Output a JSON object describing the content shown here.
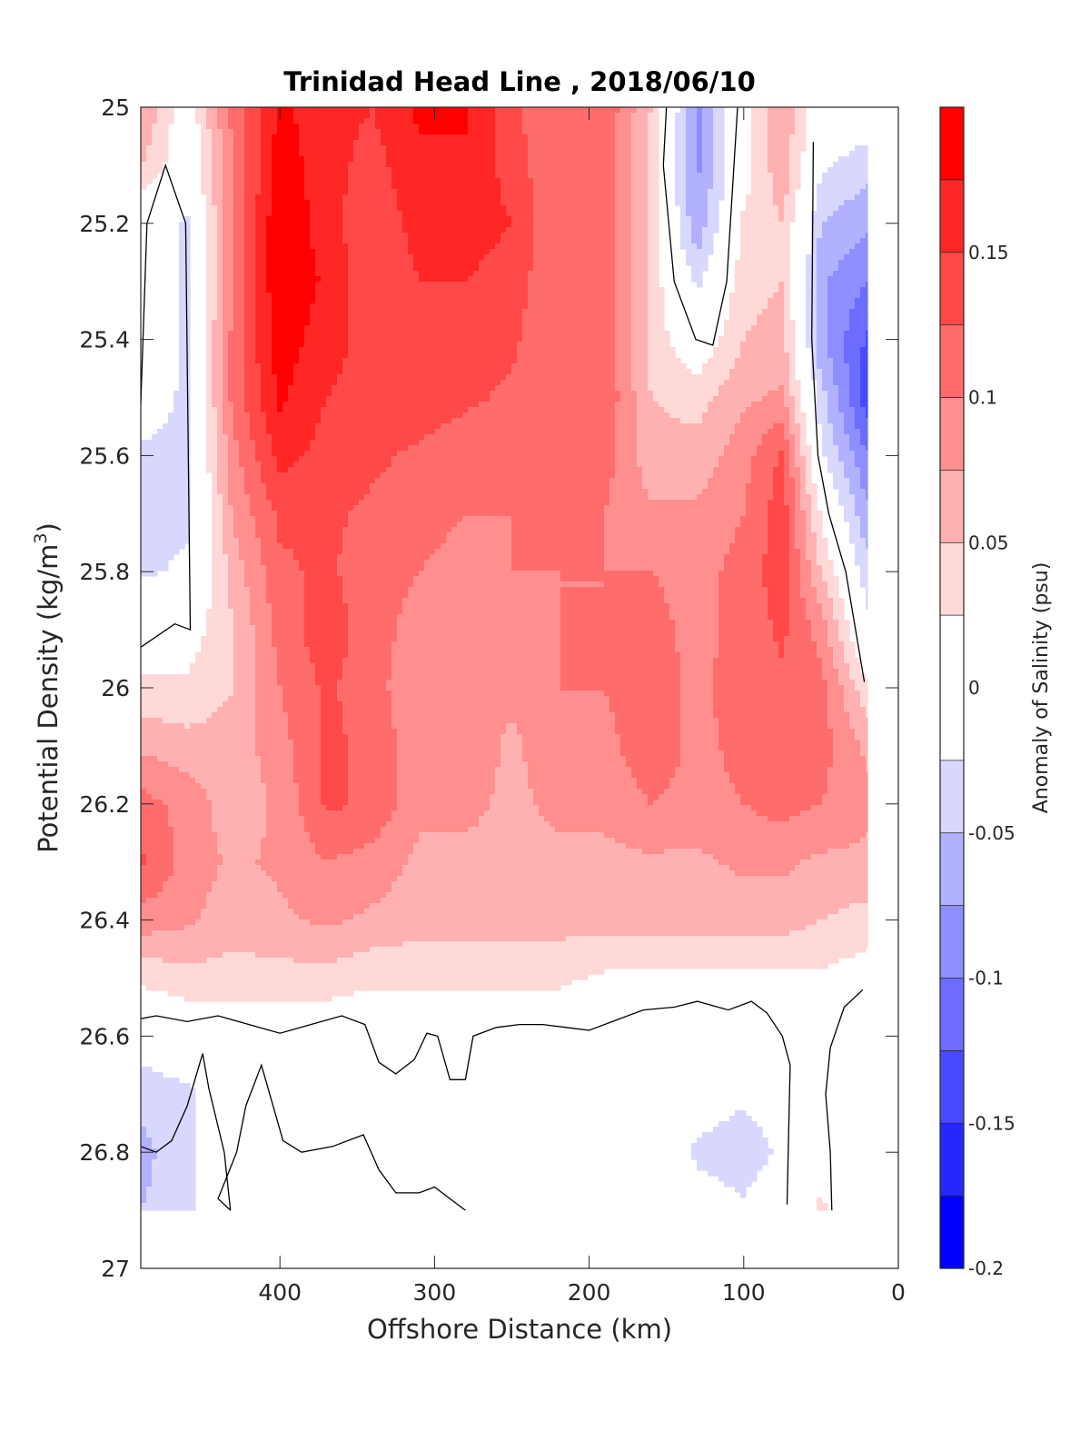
{
  "chart_data": {
    "type": "contour",
    "title": "Trinidad Head Line , 2018/06/10",
    "xlabel": "Offshore Distance (km)",
    "ylabel": "Potential Density (kg/m3)",
    "ylabel_parts": {
      "main": "Potential Density (kg/m",
      "sup": "3",
      "close": ")"
    },
    "colorbar_label": "Anomaly of Salinity (psu)",
    "x_axis": {
      "min": 0,
      "max": 490,
      "reversed": true,
      "ticks": [
        400,
        300,
        200,
        100,
        0
      ],
      "tick_labels": [
        "400",
        "300",
        "200",
        "100",
        "0"
      ]
    },
    "y_axis": {
      "min": 25,
      "max": 27,
      "reversed": true,
      "ticks": [
        25,
        25.2,
        25.4,
        25.6,
        25.8,
        26,
        26.2,
        26.4,
        26.6,
        26.8,
        27
      ],
      "tick_labels": [
        "25",
        "25.2",
        "25.4",
        "25.6",
        "25.8",
        "26",
        "26.2",
        "26.4",
        "26.6",
        "26.8",
        "27"
      ]
    },
    "colorbar": {
      "min": -0.2,
      "max": 0.2,
      "ticks": [
        0.15,
        0.1,
        0.05,
        0,
        -0.05,
        -0.1,
        -0.15,
        -0.2
      ],
      "tick_labels": [
        "0.15",
        "0.1",
        "0.05",
        "0",
        "-0.05",
        "-0.1",
        "-0.15",
        "-0.2"
      ],
      "levels": [
        {
          "from": 0.175,
          "to": 0.2,
          "color": "#ff0000"
        },
        {
          "from": 0.15,
          "to": 0.175,
          "color": "#ff2626"
        },
        {
          "from": 0.125,
          "to": 0.15,
          "color": "#ff4949"
        },
        {
          "from": 0.1,
          "to": 0.125,
          "color": "#ff6c6c"
        },
        {
          "from": 0.075,
          "to": 0.1,
          "color": "#ff8e8e"
        },
        {
          "from": 0.05,
          "to": 0.075,
          "color": "#ffb1b1"
        },
        {
          "from": 0.025,
          "to": 0.05,
          "color": "#ffd8d8"
        },
        {
          "from": -0.025,
          "to": 0.025,
          "color": "#ffffff"
        },
        {
          "from": -0.05,
          "to": -0.025,
          "color": "#d8d8ff"
        },
        {
          "from": -0.075,
          "to": -0.05,
          "color": "#b1b1ff"
        },
        {
          "from": -0.1,
          "to": -0.075,
          "color": "#8e8eff"
        },
        {
          "from": -0.125,
          "to": -0.1,
          "color": "#6c6cff"
        },
        {
          "from": -0.15,
          "to": -0.125,
          "color": "#4949ff"
        },
        {
          "from": -0.175,
          "to": -0.15,
          "color": "#2626ff"
        },
        {
          "from": -0.2,
          "to": -0.175,
          "color": "#0000ff"
        }
      ]
    },
    "data_extent": {
      "x": [
        20,
        490
      ],
      "y": [
        25,
        26.9
      ]
    },
    "x_stations": [
      490,
      460,
      430,
      400,
      370,
      340,
      310,
      280,
      250,
      220,
      190,
      160,
      130,
      100,
      75,
      50,
      20
    ],
    "y_levels": [
      25.0,
      25.1,
      25.2,
      25.3,
      25.4,
      25.5,
      25.6,
      25.7,
      25.8,
      25.9,
      26.0,
      26.1,
      26.2,
      26.3,
      26.4,
      26.5,
      26.6,
      26.7,
      26.8,
      26.9
    ],
    "grid_note": "salinity anomaly (psu); rows follow y_levels, columns follow x_stations",
    "values": [
      [
        0.08,
        0.0,
        0.11,
        0.18,
        0.16,
        0.15,
        0.18,
        0.18,
        0.13,
        0.1,
        0.12,
        0.05,
        -0.08,
        0.01,
        0.07,
        0.0,
        0.0
      ],
      [
        0.05,
        0.0,
        0.1,
        0.19,
        0.16,
        0.14,
        0.17,
        0.17,
        0.14,
        0.1,
        0.12,
        0.04,
        -0.08,
        0.01,
        0.07,
        -0.02,
        -0.04
      ],
      [
        0.0,
        -0.03,
        0.1,
        0.2,
        0.16,
        0.13,
        0.16,
        0.16,
        0.15,
        0.1,
        0.12,
        0.04,
        -0.07,
        0.03,
        0.05,
        -0.05,
        -0.07
      ],
      [
        0.0,
        -0.03,
        0.1,
        0.2,
        0.17,
        0.13,
        0.15,
        0.15,
        0.14,
        0.1,
        0.12,
        0.04,
        -0.03,
        0.04,
        0.05,
        -0.07,
        -0.1
      ],
      [
        0.0,
        -0.03,
        0.11,
        0.19,
        0.16,
        0.14,
        0.15,
        0.14,
        0.13,
        0.1,
        0.12,
        0.04,
        0.0,
        0.05,
        0.06,
        -0.07,
        -0.13
      ],
      [
        -0.01,
        -0.03,
        0.11,
        0.18,
        0.15,
        0.14,
        0.14,
        0.13,
        0.12,
        0.1,
        0.12,
        0.05,
        0.04,
        0.07,
        0.08,
        -0.04,
        -0.14
      ],
      [
        -0.03,
        -0.03,
        0.09,
        0.16,
        0.14,
        0.13,
        0.12,
        0.11,
        0.11,
        0.1,
        0.11,
        0.06,
        0.06,
        0.09,
        0.13,
        -0.02,
        -0.1
      ],
      [
        -0.03,
        -0.03,
        0.08,
        0.13,
        0.13,
        0.12,
        0.11,
        0.1,
        0.1,
        0.1,
        0.1,
        0.08,
        0.08,
        0.1,
        0.14,
        0.02,
        -0.07
      ],
      [
        -0.03,
        -0.02,
        0.06,
        0.12,
        0.13,
        0.11,
        0.1,
        0.09,
        0.1,
        0.1,
        0.1,
        0.1,
        0.09,
        0.11,
        0.14,
        0.05,
        -0.04
      ],
      [
        0.01,
        0.01,
        0.05,
        0.11,
        0.14,
        0.11,
        0.09,
        0.09,
        0.09,
        0.1,
        0.1,
        0.11,
        0.09,
        0.11,
        0.13,
        0.09,
        -0.02
      ],
      [
        0.03,
        0.03,
        0.05,
        0.1,
        0.13,
        0.11,
        0.08,
        0.09,
        0.08,
        0.1,
        0.1,
        0.12,
        0.09,
        0.12,
        0.12,
        0.11,
        0.03
      ],
      [
        0.07,
        0.06,
        0.06,
        0.09,
        0.13,
        0.12,
        0.08,
        0.09,
        0.07,
        0.09,
        0.09,
        0.12,
        0.09,
        0.11,
        0.11,
        0.11,
        0.07
      ],
      [
        0.11,
        0.09,
        0.06,
        0.08,
        0.13,
        0.12,
        0.08,
        0.08,
        0.07,
        0.08,
        0.08,
        0.1,
        0.09,
        0.1,
        0.11,
        0.1,
        0.08
      ],
      [
        0.13,
        0.09,
        0.07,
        0.08,
        0.1,
        0.09,
        0.07,
        0.07,
        0.07,
        0.07,
        0.07,
        0.07,
        0.07,
        0.08,
        0.08,
        0.07,
        0.07
      ],
      [
        0.09,
        0.08,
        0.06,
        0.07,
        0.08,
        0.07,
        0.06,
        0.06,
        0.06,
        0.06,
        0.06,
        0.06,
        0.06,
        0.06,
        0.06,
        0.05,
        0.04
      ],
      [
        0.03,
        0.04,
        0.04,
        0.04,
        0.04,
        0.03,
        0.03,
        0.03,
        0.03,
        0.03,
        0.02,
        0.02,
        0.02,
        0.02,
        0.02,
        0.02,
        0.01
      ],
      [
        -0.01,
        0.0,
        0.0,
        0.0,
        0.0,
        0.0,
        0.0,
        0.0,
        0.0,
        0.0,
        0.0,
        0.0,
        0.0,
        0.0,
        0.0,
        0.0,
        0.0
      ],
      [
        -0.04,
        -0.03,
        0.0,
        0.0,
        0.0,
        0.0,
        0.0,
        0.0,
        0.0,
        0.0,
        0.0,
        0.0,
        -0.01,
        -0.02,
        -0.01,
        0.0,
        0.0
      ],
      [
        -0.06,
        -0.03,
        0.0,
        0.0,
        0.0,
        0.0,
        0.0,
        0.0,
        0.0,
        0.0,
        0.0,
        0.0,
        -0.03,
        -0.04,
        -0.02,
        0.01,
        0.0
      ],
      [
        -0.05,
        -0.03,
        0.0,
        0.0,
        0.0,
        0.0,
        0.0,
        0.0,
        0.0,
        0.0,
        0.0,
        0.0,
        -0.01,
        -0.02,
        0.0,
        0.03,
        0.0
      ]
    ],
    "contour_lines": [
      {
        "name": "zero-contour-upper-left",
        "points": [
          [
            490,
            25.51
          ],
          [
            486,
            25.2
          ],
          [
            474,
            25.1
          ],
          [
            461,
            25.2
          ],
          [
            458,
            25.9
          ],
          [
            468,
            25.89
          ],
          [
            490,
            25.93
          ]
        ]
      },
      {
        "name": "zero-contour-upper-right-a",
        "points": [
          [
            150,
            25.0
          ],
          [
            152,
            25.1
          ],
          [
            145,
            25.3
          ],
          [
            131,
            25.4
          ],
          [
            120,
            25.41
          ],
          [
            111,
            25.3
          ],
          [
            104,
            25.0
          ]
        ]
      },
      {
        "name": "zero-contour-upper-right-b",
        "points": [
          [
            55,
            25.06
          ],
          [
            56,
            25.4
          ],
          [
            52,
            25.6
          ],
          [
            45,
            25.7
          ],
          [
            34,
            25.8
          ],
          [
            22,
            25.99
          ]
        ]
      },
      {
        "name": "zero-contour-mid",
        "points": [
          [
            490,
            26.57
          ],
          [
            480,
            26.565
          ],
          [
            460,
            26.575
          ],
          [
            440,
            26.565
          ],
          [
            420,
            26.58
          ],
          [
            400,
            26.595
          ],
          [
            380,
            26.58
          ],
          [
            360,
            26.565
          ],
          [
            345,
            26.58
          ],
          [
            336,
            26.645
          ],
          [
            325,
            26.665
          ],
          [
            313,
            26.64
          ],
          [
            305,
            26.595
          ],
          [
            298,
            26.6
          ],
          [
            290,
            26.675
          ],
          [
            280,
            26.675
          ],
          [
            275,
            26.6
          ],
          [
            260,
            26.585
          ],
          [
            245,
            26.58
          ],
          [
            230,
            26.58
          ],
          [
            215,
            26.585
          ],
          [
            200,
            26.59
          ],
          [
            185,
            26.575
          ],
          [
            165,
            26.555
          ],
          [
            145,
            26.55
          ],
          [
            130,
            26.54
          ],
          [
            110,
            26.555
          ],
          [
            95,
            26.54
          ],
          [
            85,
            26.56
          ],
          [
            75,
            26.6
          ],
          [
            70,
            26.65
          ],
          [
            72,
            26.89
          ]
        ]
      },
      {
        "name": "zero-contour-lower-left",
        "points": [
          [
            432,
            26.9
          ],
          [
            436,
            26.8
          ],
          [
            446,
            26.69
          ],
          [
            450,
            26.63
          ],
          [
            460,
            26.72
          ],
          [
            470,
            26.78
          ],
          [
            480,
            26.8
          ],
          [
            490,
            26.79
          ]
        ]
      },
      {
        "name": "zero-contour-lower-mid",
        "points": [
          [
            432,
            26.9
          ],
          [
            440,
            26.88
          ],
          [
            428,
            26.8
          ],
          [
            422,
            26.72
          ],
          [
            412,
            26.65
          ],
          [
            398,
            26.78
          ],
          [
            386,
            26.8
          ],
          [
            366,
            26.79
          ],
          [
            346,
            26.77
          ],
          [
            336,
            26.83
          ],
          [
            325,
            26.87
          ],
          [
            310,
            26.87
          ],
          [
            300,
            26.86
          ],
          [
            280,
            26.9
          ]
        ]
      },
      {
        "name": "zero-contour-lower-right",
        "points": [
          [
            43,
            26.9
          ],
          [
            44,
            26.8
          ],
          [
            47,
            26.7
          ],
          [
            44,
            26.62
          ],
          [
            35,
            26.55
          ],
          [
            23,
            26.52
          ]
        ]
      }
    ]
  }
}
